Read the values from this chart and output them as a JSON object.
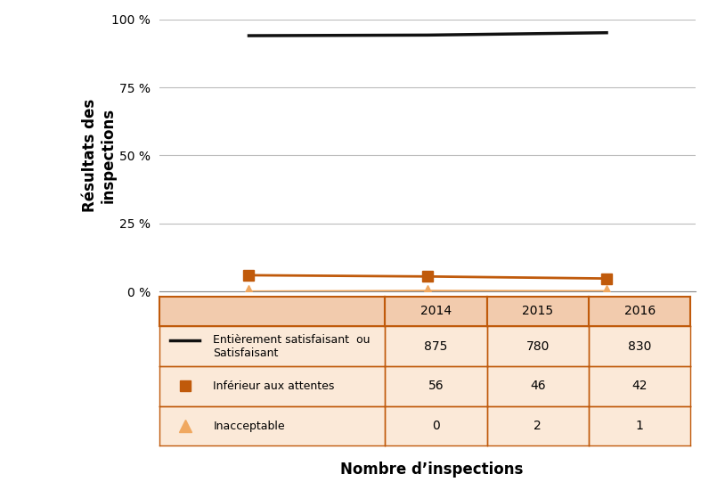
{
  "years": [
    2014,
    2015,
    2016
  ],
  "satisfaisant": [
    93.98,
    94.2,
    95.07
  ],
  "inferieur": [
    6.02,
    5.56,
    4.81
  ],
  "inacceptable": [
    0.0,
    0.24,
    0.11
  ],
  "counts_satisfaisant": [
    875,
    780,
    830
  ],
  "counts_inferieur": [
    56,
    46,
    42
  ],
  "counts_inacceptable": [
    0,
    2,
    1
  ],
  "color_satisfaisant": "#111111",
  "color_inferieur": "#C05A0B",
  "color_inacceptable": "#F0A860",
  "ylabel": "Résultats des\ninspections",
  "xlabel": "Nombre d’inspections",
  "ylim": [
    0,
    100
  ],
  "yticks": [
    0,
    25,
    50,
    75,
    100
  ],
  "ytick_labels": [
    "0 %",
    "25 %",
    "50 %",
    "75 %",
    "100 %"
  ],
  "table_header_bg": "#F2CBAD",
  "table_row_bg": "#FBE9D8",
  "table_border_color": "#C05A0B",
  "row_label_0": "Entièrement satisfaisant  ou\nSatisfaisant",
  "row_label_1": "Inférieur aux attentes",
  "row_label_2": "Inacceptable"
}
